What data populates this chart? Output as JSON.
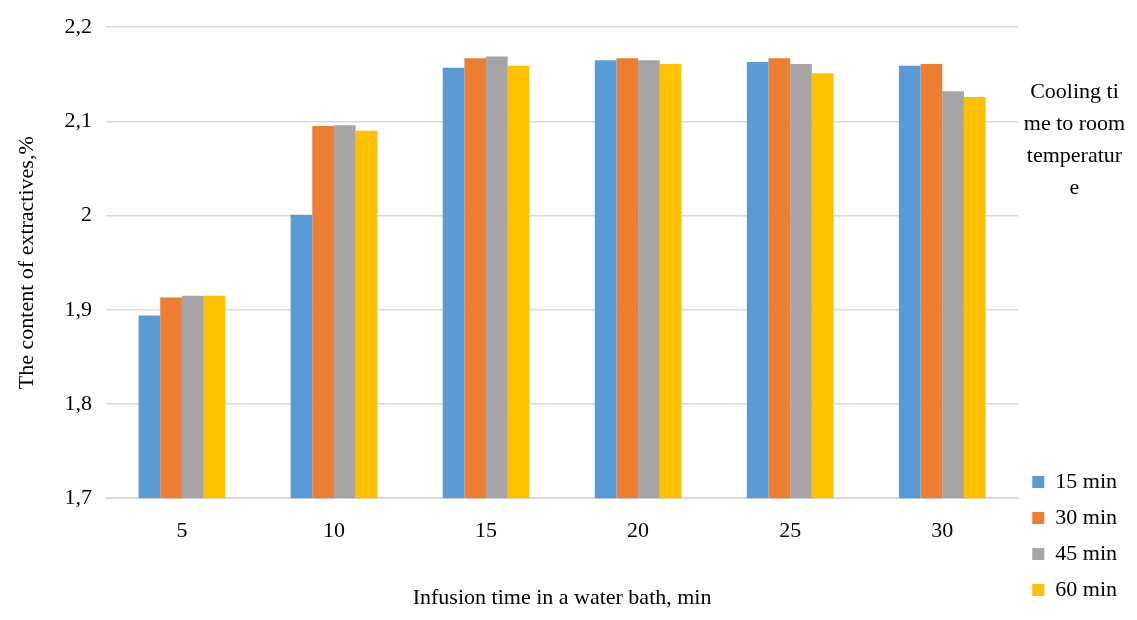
{
  "chart_data": {
    "type": "bar",
    "xlabel": "Infusion time in a water bath, min",
    "ylabel": "The content of extractives,%",
    "legend_title": "Cooling time to room temperature",
    "legend": "right",
    "categories": [
      "5",
      "10",
      "15",
      "20",
      "25",
      "30"
    ],
    "series": [
      {
        "name": "15 min",
        "color": "#5b9bd5",
        "values": [
          1.894,
          2.001,
          2.157,
          2.165,
          2.163,
          2.159
        ]
      },
      {
        "name": "30 min",
        "color": "#ed7d31",
        "values": [
          1.913,
          2.095,
          2.167,
          2.167,
          2.167,
          2.161
        ]
      },
      {
        "name": "45 min",
        "color": "#a5a5a5",
        "values": [
          1.915,
          2.096,
          2.169,
          2.165,
          2.161,
          2.132
        ]
      },
      {
        "name": "60 min",
        "color": "#ffc000",
        "values": [
          1.915,
          2.09,
          2.159,
          2.161,
          2.151,
          2.126
        ]
      }
    ],
    "ylim": [
      1.7,
      2.2
    ],
    "yticks": [
      {
        "value": 1.7,
        "label": "1,7"
      },
      {
        "value": 1.8,
        "label": "1,8"
      },
      {
        "value": 1.9,
        "label": "1,9"
      },
      2,
      {
        "value": 2.1,
        "label": "2,1"
      },
      {
        "value": 2.2,
        "label": "2,2"
      }
    ],
    "grid": "y"
  }
}
